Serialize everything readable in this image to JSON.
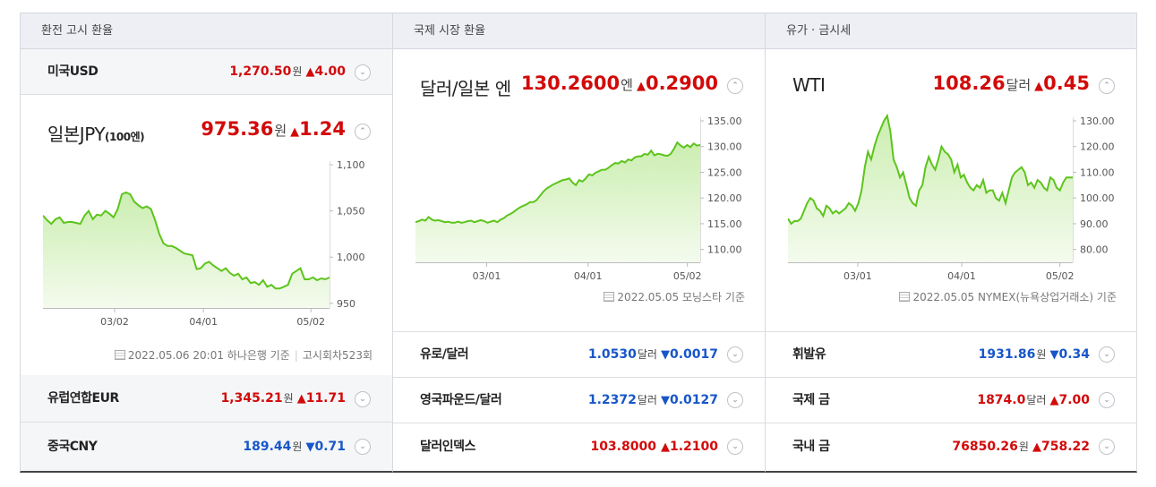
{
  "panels": [
    {
      "title": "환전 고시 환율"
    },
    {
      "title": "국제 시장 환율"
    },
    {
      "title": "유가 · 금시세"
    }
  ],
  "exchange": {
    "usd": {
      "name": "미국USD",
      "value": "1,270.50",
      "unit": "원",
      "arrow": "▲",
      "change": "4.00",
      "dir": "up"
    },
    "jpy": {
      "name": "일본JPY",
      "name_sub": "(100엔)",
      "value": "975.36",
      "unit": "원",
      "arrow": "▲",
      "change": "1.24",
      "dir": "up",
      "source": {
        "date": "2022.05.06 20:01 하나은행 기준",
        "round": "고시회차523회"
      }
    },
    "eur": {
      "name": "유럽연합EUR",
      "value": "1,345.21",
      "unit": "원",
      "arrow": "▲",
      "change": "11.71",
      "dir": "up"
    },
    "cny": {
      "name": "중국CNY",
      "value": "189.44",
      "unit": "원",
      "arrow": "▼",
      "change": "0.71",
      "dir": "down"
    }
  },
  "market": {
    "usdjpy": {
      "name": "달러/일본 엔",
      "value": "130.2600",
      "unit": "엔",
      "arrow": "▲",
      "change": "0.2900",
      "dir": "up",
      "source": "2022.05.05 모닝스타 기준"
    },
    "eurusd": {
      "name": "유로/달러",
      "value": "1.0530",
      "unit": "달러",
      "arrow": "▼",
      "change": "0.0017",
      "dir": "down"
    },
    "gbpusd": {
      "name": "영국파운드/달러",
      "value": "1.2372",
      "unit": "달러",
      "arrow": "▼",
      "change": "0.0127",
      "dir": "down"
    },
    "dxy": {
      "name": "달러인덱스",
      "value": "103.8000",
      "unit": "",
      "arrow": "▲",
      "change": "1.2100",
      "dir": "up"
    }
  },
  "oil": {
    "wti": {
      "name": "WTI",
      "value": "108.26",
      "unit": "달러",
      "arrow": "▲",
      "change": "0.45",
      "dir": "up",
      "source": "2022.05.05 NYMEX(뉴욕상업거래소) 기준"
    },
    "gasoline": {
      "name": "휘발유",
      "value": "1931.86",
      "unit": "원",
      "arrow": "▼",
      "change": "0.34",
      "dir": "down"
    },
    "intl_gold": {
      "name": "국제 금",
      "value": "1874.0",
      "unit": "달러",
      "arrow": "▲",
      "change": "7.00",
      "dir": "up"
    },
    "dom_gold": {
      "name": "국내 금",
      "value": "76850.26",
      "unit": "원",
      "arrow": "▲",
      "change": "758.22",
      "dir": "up"
    }
  },
  "colors": {
    "up": "#d20a0a",
    "down": "#1856c9",
    "line": "#5dc41c",
    "fill_top": "#cbeeb0",
    "fill_bottom": "#f4fbee",
    "header_bg": "#edeff5"
  },
  "icons": {
    "collapse": "chevron-up-icon",
    "expand": "chevron-down-icon",
    "source": "document-icon"
  },
  "chart_data": [
    {
      "type": "area",
      "series": [
        {
          "values": [
            1045,
            1040,
            1036,
            1041,
            1043,
            1037,
            1038,
            1038,
            1037,
            1036,
            1045,
            1050,
            1041,
            1046,
            1045,
            1050,
            1047,
            1043,
            1052,
            1068,
            1070,
            1068,
            1060,
            1056,
            1053,
            1055,
            1052,
            1040,
            1025,
            1015,
            1012,
            1012,
            1010,
            1007,
            1004,
            1003,
            1002,
            987,
            988,
            993,
            995,
            991,
            988,
            985,
            988,
            983,
            980,
            982,
            976,
            978,
            972,
            973,
            970,
            975,
            968,
            970,
            966,
            966,
            968,
            970,
            982,
            985,
            988,
            976,
            976,
            978,
            975,
            977,
            976,
            978
          ]
        }
      ],
      "x_ticks": [
        "03/02",
        "04/01",
        "05/02"
      ],
      "y_ticks": [
        "1,100",
        "1,050",
        "1,000",
        "950"
      ],
      "ylim": [
        945,
        1100
      ]
    },
    {
      "type": "area",
      "series": [
        {
          "values": [
            115.3,
            115.5,
            115.8,
            115.6,
            116.3,
            115.8,
            115.6,
            115.7,
            115.5,
            115.3,
            115.4,
            115.2,
            115.2,
            115.4,
            115.2,
            115.3,
            115.5,
            115.6,
            115.3,
            115.5,
            115.7,
            115.5,
            115.2,
            115.4,
            115.6,
            115.3,
            115.8,
            116.1,
            116.6,
            116.9,
            117.3,
            117.8,
            118.2,
            118.5,
            118.8,
            119.2,
            119.2,
            119.6,
            120.4,
            121.2,
            121.8,
            122.2,
            122.6,
            122.9,
            123.2,
            123.5,
            123.6,
            123.8,
            123.0,
            122.5,
            123.5,
            123.2,
            123.8,
            124.6,
            124.4,
            124.9,
            125.2,
            125.5,
            125.5,
            125.9,
            126.4,
            126.8,
            126.7,
            127.2,
            126.9,
            127.5,
            127.3,
            127.9,
            128.1,
            128.1,
            128.6,
            128.4,
            129.2,
            128.3,
            128.6,
            128.5,
            128.3,
            128.2,
            128.6,
            129.6,
            130.8,
            130.2,
            129.8,
            130.3,
            129.9,
            130.6,
            130.2,
            130.3
          ]
        }
      ],
      "x_ticks": [
        "03/01",
        "04/01",
        "05/02"
      ],
      "y_ticks": [
        "135.00",
        "130.00",
        "125.00",
        "120.00",
        "115.00",
        "110.00"
      ],
      "ylim": [
        107.5,
        135
      ]
    },
    {
      "type": "area",
      "series": [
        {
          "values": [
            92,
            90,
            91,
            91,
            92,
            95,
            98,
            100,
            99,
            96,
            95,
            93,
            97,
            96,
            94,
            95,
            94,
            95,
            96,
            98,
            97,
            95,
            98,
            103,
            112,
            118,
            115,
            120,
            124,
            127,
            130,
            132,
            126,
            115,
            112,
            108,
            110,
            105,
            100,
            98,
            97,
            103,
            105,
            112,
            116,
            113,
            111,
            115,
            120,
            118,
            117,
            115,
            110,
            113,
            108,
            109,
            106,
            104,
            103,
            105,
            104,
            107,
            102,
            103,
            103,
            100,
            99,
            102,
            98,
            103,
            108,
            110,
            111,
            112,
            110,
            105,
            106,
            104,
            107,
            106,
            104,
            103,
            108,
            107,
            104,
            103,
            106,
            108,
            108,
            108
          ]
        }
      ],
      "x_ticks": [
        "03/01",
        "04/01",
        "05/02"
      ],
      "y_ticks": [
        "130.00",
        "120.00",
        "110.00",
        "100.00",
        "90.00",
        "80.00"
      ],
      "ylim": [
        75,
        130
      ]
    }
  ]
}
